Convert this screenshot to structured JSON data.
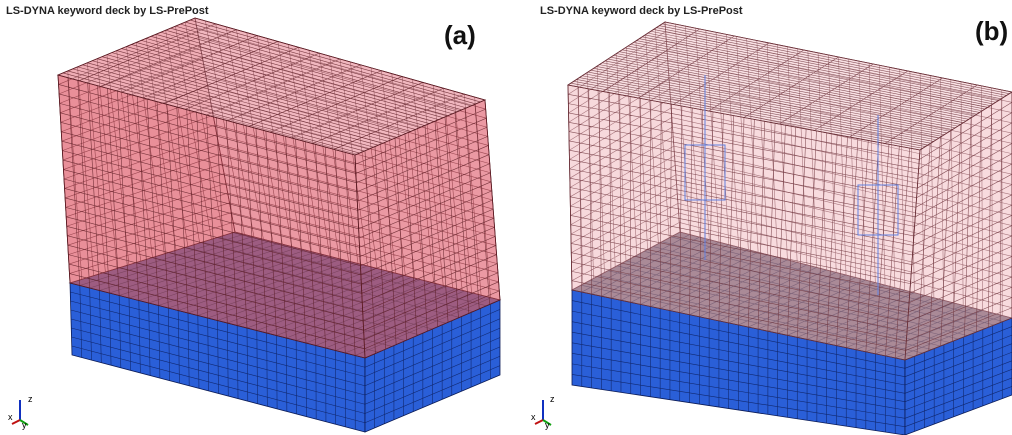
{
  "panels": [
    {
      "header": "LS-DYNA keyword deck by LS-PrePost",
      "label": "(a)",
      "triad": {
        "z": "z",
        "x": "x",
        "y": "y"
      }
    },
    {
      "header": "LS-DYNA keyword deck by LS-PrePost",
      "label": "(b)",
      "triad": {
        "z": "z",
        "x": "x",
        "y": "y"
      }
    }
  ]
}
